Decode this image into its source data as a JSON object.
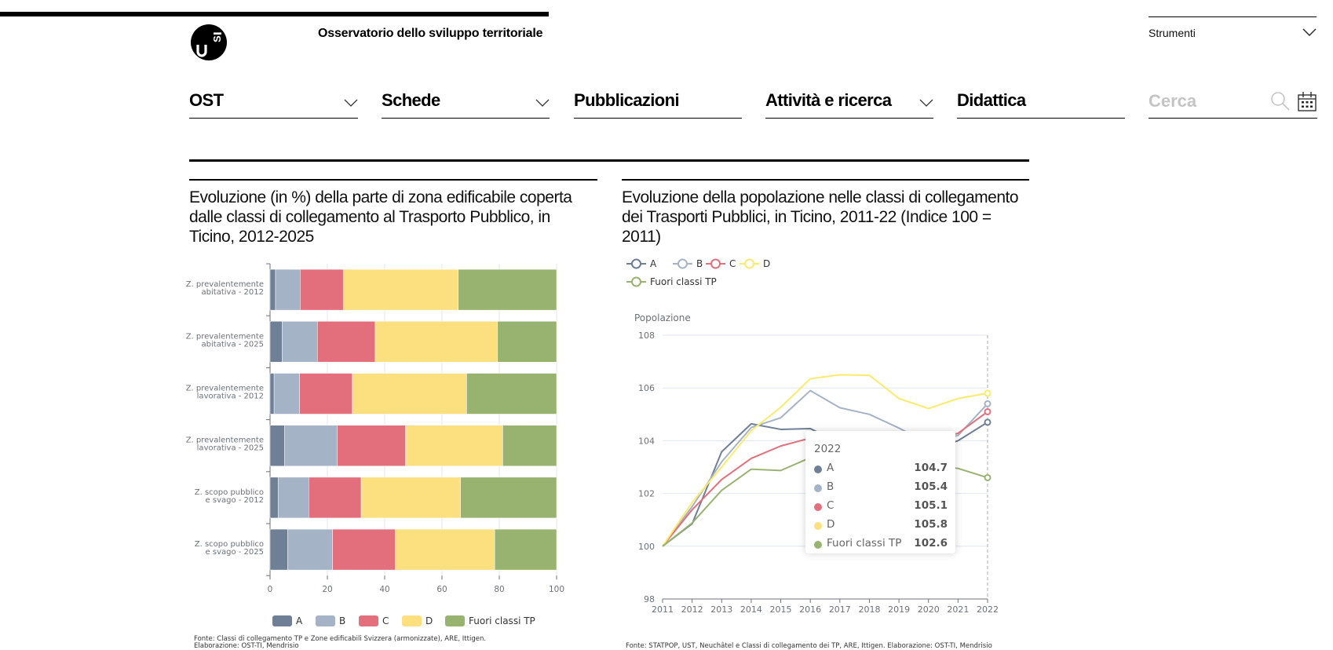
{
  "header": {
    "site_title": "Osservatorio dello sviluppo territoriale",
    "logo_text": "USI",
    "tools_label": "Strumenti"
  },
  "nav": {
    "items": [
      {
        "label": "OST",
        "has_dropdown": true
      },
      {
        "label": "Schede",
        "has_dropdown": true
      },
      {
        "label": "Pubblicazioni",
        "has_dropdown": false
      },
      {
        "label": "Attività e ricerca",
        "has_dropdown": true
      },
      {
        "label": "Didattica",
        "has_dropdown": false
      }
    ],
    "search_placeholder": "Cerca"
  },
  "colors": {
    "A": "#6e7f96",
    "B": "#a5b3c6",
    "C": "#e46f7c",
    "D": "#fcdf7f",
    "F": "#98b36f",
    "D_line": "#fbea6c"
  },
  "chart_data": [
    {
      "type": "bar",
      "orientation": "horizontal-stacked",
      "title": "Evoluzione (in %) della parte di zona edificabile coperta dalle classi di collegamento al Trasporto Pubblico, in Ticino, 2012-2025",
      "categories": [
        "Z. prevalentemente\nabitativa - 2012",
        "Z. prevalentemente\nabitativa - 2025",
        "Z. prevalentemente\nlavorativa - 2012",
        "Z. prevalentemente\nlavorativa - 2025",
        "Z. scopo pubblico\ne svago - 2012",
        "Z. scopo pubblico\ne svago - 2025"
      ],
      "series": [
        {
          "name": "A",
          "values": [
            1.9,
            4.2,
            1.4,
            5.0,
            2.8,
            6.1
          ]
        },
        {
          "name": "B",
          "values": [
            8.6,
            12.3,
            8.9,
            18.5,
            10.7,
            15.7
          ]
        },
        {
          "name": "C",
          "values": [
            15.1,
            20.2,
            18.4,
            23.8,
            18.3,
            21.9
          ]
        },
        {
          "name": "D",
          "values": [
            40.1,
            42.7,
            39.9,
            33.9,
            34.7,
            34.7
          ]
        },
        {
          "name": "Fuori classi TP",
          "values": [
            34.3,
            20.6,
            31.4,
            18.8,
            33.5,
            21.6
          ]
        }
      ],
      "xlim": [
        0,
        100
      ],
      "xticks": [
        "0",
        "20",
        "40",
        "60",
        "80",
        "100"
      ],
      "xlabel": "",
      "ylabel": "",
      "grid": true,
      "legend": [
        "A",
        "B",
        "C",
        "D",
        "Fuori classi TP"
      ],
      "legend_position": "bottom",
      "source": "Fonte: Classi di collegamento TP e Zone edificabili Svizzera (armonizzate), ARE, Ittigen.",
      "source_line2": "Elaborazione: OST-TI, Mendrisio"
    },
    {
      "type": "line",
      "title": "Evoluzione della popolazione nelle classi di collegamento dei Trasporti Pubblici, in Ticino, 2011-22 (Indice 100 = 2011)",
      "x": [
        "2011",
        "2012",
        "2013",
        "2014",
        "2015",
        "2016",
        "2017",
        "2018",
        "2019",
        "2020",
        "2021",
        "2022"
      ],
      "series": [
        {
          "name": "A",
          "values": [
            100,
            100.85,
            103.58,
            104.64,
            104.43,
            104.46,
            103.9,
            103.7,
            103.6,
            103.6,
            104.0,
            104.7
          ]
        },
        {
          "name": "B",
          "values": [
            100,
            101.5,
            103.2,
            104.5,
            104.87,
            105.9,
            105.25,
            105.0,
            104.48,
            103.9,
            104.2,
            105.4
          ]
        },
        {
          "name": "C",
          "values": [
            100,
            101.38,
            102.53,
            103.33,
            103.8,
            104.1,
            104.05,
            104.0,
            103.95,
            104.0,
            104.28,
            105.1
          ]
        },
        {
          "name": "D",
          "values": [
            100,
            101.66,
            103.0,
            104.38,
            105.27,
            106.35,
            106.5,
            106.48,
            105.6,
            105.22,
            105.6,
            105.8
          ]
        },
        {
          "name": "Fuori classi TP",
          "values": [
            100,
            100.88,
            102.12,
            102.92,
            102.87,
            103.36,
            103.35,
            103.3,
            103.2,
            103.1,
            102.95,
            102.6
          ]
        }
      ],
      "ylim": [
        98,
        108
      ],
      "yticks": [
        "98",
        "100",
        "102",
        "104",
        "106",
        "108"
      ],
      "ylabel": "Popolazione",
      "xlabel": "",
      "grid": true,
      "legend": [
        "A",
        "B",
        "C",
        "D",
        "Fuori classi TP"
      ],
      "legend_position": "top-left",
      "highlighted_x": "2022",
      "tooltip": {
        "title": "2022",
        "rows": [
          {
            "name": "A",
            "value": "104.7"
          },
          {
            "name": "B",
            "value": "105.4"
          },
          {
            "name": "C",
            "value": "105.1"
          },
          {
            "name": "D",
            "value": "105.8"
          },
          {
            "name": "Fuori classi TP",
            "value": "102.6"
          }
        ]
      },
      "source": "Fonte: STATPOP, UST, Neuchâtel e Classi di collegamento dei TP, ARE, Ittigen. Elaborazione: OST-TI, Mendrisio"
    }
  ]
}
